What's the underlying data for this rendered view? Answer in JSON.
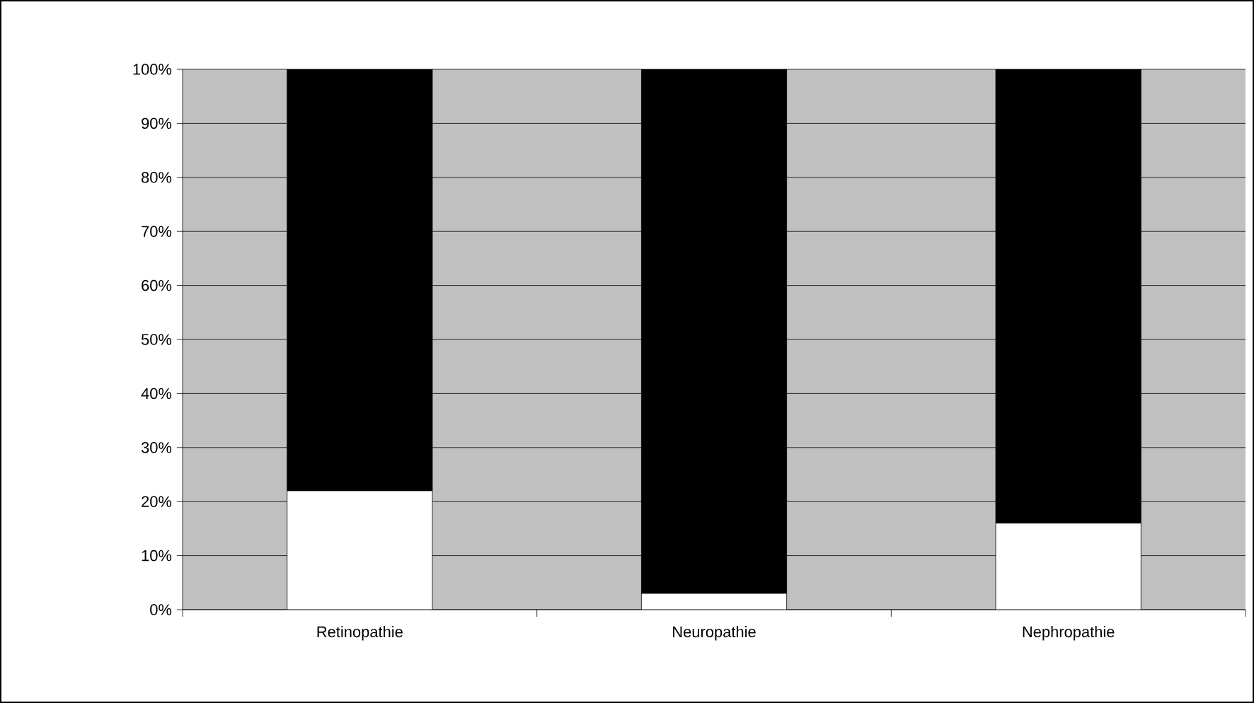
{
  "chart_data": {
    "type": "bar",
    "stacked": true,
    "categories": [
      "Retinopathie",
      "Neuropathie",
      "Nephropathie"
    ],
    "series": [
      {
        "color": "#ffffff",
        "values": [
          22,
          3,
          16
        ]
      },
      {
        "color": "#000000",
        "values": [
          78,
          97,
          84
        ]
      }
    ],
    "ylim": [
      0,
      100
    ],
    "yticks": [
      {
        "value": 0,
        "label": "0%"
      },
      {
        "value": 10,
        "label": "10%"
      },
      {
        "value": 20,
        "label": "20%"
      },
      {
        "value": 30,
        "label": "30%"
      },
      {
        "value": 40,
        "label": "40%"
      },
      {
        "value": 50,
        "label": "50%"
      },
      {
        "value": 60,
        "label": "60%"
      },
      {
        "value": 70,
        "label": "70%"
      },
      {
        "value": 80,
        "label": "80%"
      },
      {
        "value": 90,
        "label": "90%"
      },
      {
        "value": 100,
        "label": "100%"
      }
    ],
    "grid": "y"
  }
}
